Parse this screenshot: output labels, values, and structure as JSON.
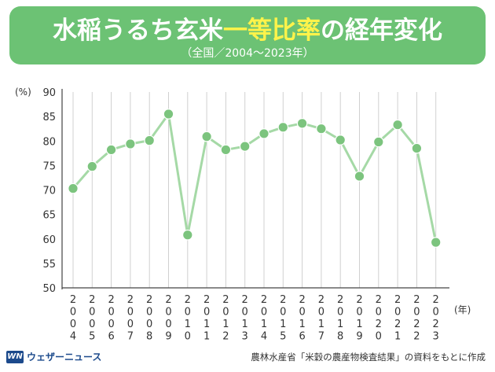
{
  "header": {
    "title_pre": "水稲うるち玄米",
    "title_highlight": "一等比率",
    "title_post": "の経年変化",
    "subtitle": "（全国／2004～2023年）"
  },
  "footer": {
    "logo_mark": "WN",
    "logo_text": "ウェザーニュース",
    "source": "農林水産省「米穀の農産物検査結果」の資料をもとに作成"
  },
  "colors": {
    "banner": "#6cc274",
    "highlight": "#fff34a",
    "line": "#a5d9a6",
    "marker": "#7cc47e",
    "grid": "#d0d0d0"
  },
  "chart_data": {
    "type": "line",
    "title": "水稲うるち玄米一等比率の経年変化",
    "subtitle": "（全国／2004～2023年）",
    "y_unit": "(%)",
    "x_unit": "(年)",
    "ylim": [
      50,
      90
    ],
    "yticks": [
      "50",
      "55",
      "60",
      "65",
      "70",
      "75",
      "80",
      "85",
      "90"
    ],
    "grid": "vertical",
    "x": [
      "2004",
      "2005",
      "2006",
      "2007",
      "2008",
      "2009",
      "2010",
      "2011",
      "2012",
      "2013",
      "2014",
      "2015",
      "2016",
      "2017",
      "2018",
      "2019",
      "2020",
      "2021",
      "2022",
      "2023"
    ],
    "series": [
      {
        "values": [
          70.3,
          74.8,
          78.2,
          79.4,
          80.1,
          85.5,
          60.8,
          80.9,
          78.2,
          78.9,
          81.5,
          82.8,
          83.6,
          82.5,
          80.2,
          72.8,
          79.8,
          83.3,
          78.5,
          59.3
        ]
      }
    ]
  }
}
